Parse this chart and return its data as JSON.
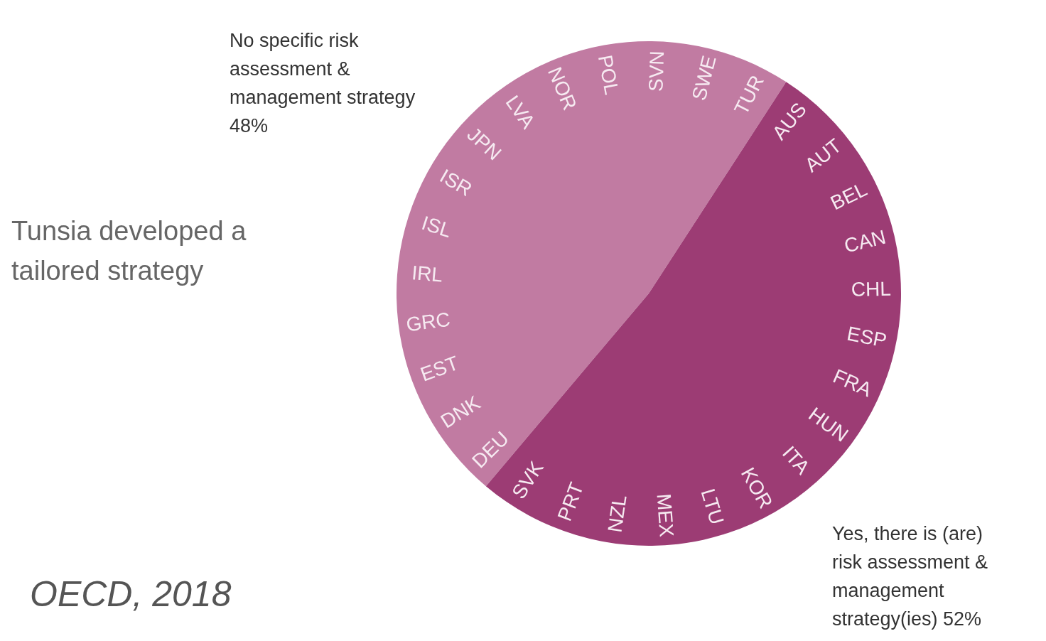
{
  "chart_data": {
    "type": "pie",
    "categories": [
      "No specific risk assessment & management strategy",
      "Yes, there is (are) risk assessment & management strategy(ies)"
    ],
    "values": [
      48,
      52
    ],
    "colors": [
      "#c17ba2",
      "#9c3c74"
    ],
    "value_labels": [
      "48%",
      "52%"
    ],
    "annotations": [
      "Tunsia developed a tailored strategy",
      "OECD, 2018",
      "AUS",
      "AUT",
      "BEL",
      "CAN",
      "CHL",
      "ESP",
      "FRA",
      "HUN",
      "ITA",
      "KOR",
      "LTU",
      "MEX",
      "NZL",
      "PRT",
      "SVK",
      "DEU",
      "DNK",
      "EST",
      "GRC",
      "IRL",
      "ISL",
      "ISR",
      "JPN",
      "LVA",
      "NOR",
      "POL",
      "SVN",
      "SWE",
      "TUR"
    ]
  }
}
